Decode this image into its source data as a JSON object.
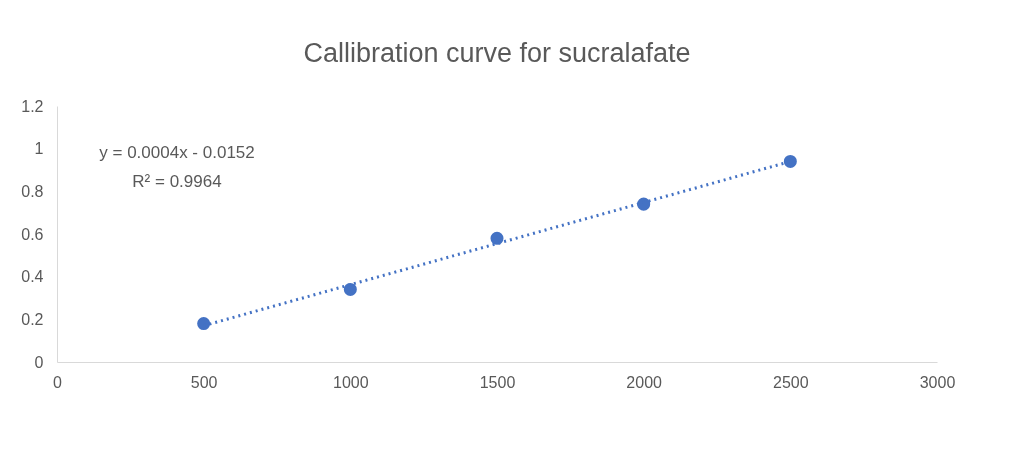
{
  "chart_data": {
    "type": "scatter",
    "title": "Callibration curve for sucralafate",
    "x": [
      500,
      1000,
      1500,
      2000,
      2500
    ],
    "series": [
      {
        "color": "#4472c4",
        "values": [
          0.18,
          0.34,
          0.58,
          0.74,
          0.94
        ],
        "marker": "circle"
      },
      {
        "type": "line",
        "color": "#4472c4",
        "x": [
          500,
          2500
        ],
        "values": [
          0.17,
          0.94
        ],
        "line_style": "dotted",
        "marker": "none"
      }
    ],
    "xlim": [
      0,
      3000
    ],
    "xticks": [
      0,
      500,
      1000,
      1500,
      2000,
      2500,
      3000
    ],
    "ylim": [
      0,
      1.2
    ],
    "yticks": [
      0,
      0.2,
      0.4,
      0.6,
      0.8,
      1,
      1.2
    ],
    "annotations": [
      "y = 0.0004x - 0.0152",
      "R² = 0.9964"
    ],
    "grid": false
  }
}
